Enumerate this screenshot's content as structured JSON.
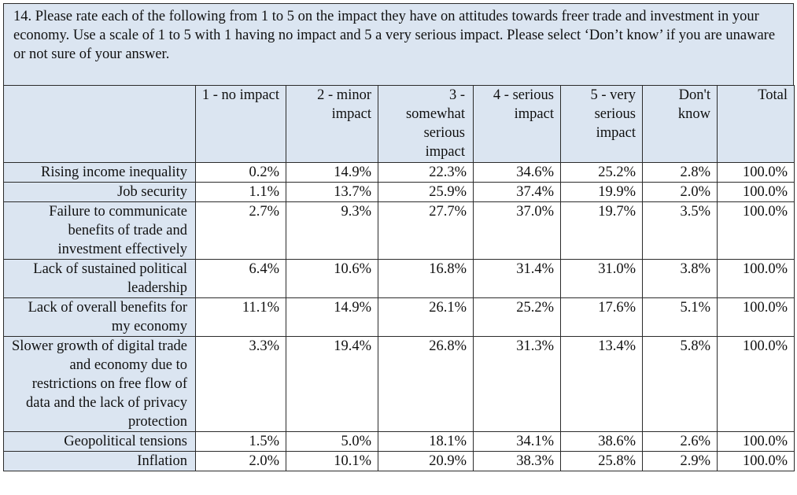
{
  "question": "14.  Please rate each of the following from 1 to 5 on the impact they have on attitudes towards freer trade and investment in your economy. Use a scale of 1 to 5 with 1 having no impact and 5 a very serious impact. Please select ‘Don’t know’ if you are unaware or not sure of your answer.",
  "columns": [
    "1 - no impact",
    "2 - minor impact",
    "3 - somewhat serious impact",
    "4 - serious impact",
    "5 - very serious impact",
    "Don't know",
    "Total"
  ],
  "rows": [
    {
      "label": "Rising income inequality",
      "values": [
        "0.2%",
        "14.9%",
        "22.3%",
        "34.6%",
        "25.2%",
        "2.8%",
        "100.0%"
      ]
    },
    {
      "label": "Job security",
      "values": [
        "1.1%",
        "13.7%",
        "25.9%",
        "37.4%",
        "19.9%",
        "2.0%",
        "100.0%"
      ]
    },
    {
      "label": "Failure to communicate benefits of trade and investment effectively",
      "values": [
        "2.7%",
        "9.3%",
        "27.7%",
        "37.0%",
        "19.7%",
        "3.5%",
        "100.0%"
      ]
    },
    {
      "label": "Lack of sustained political leadership",
      "values": [
        "6.4%",
        "10.6%",
        "16.8%",
        "31.4%",
        "31.0%",
        "3.8%",
        "100.0%"
      ]
    },
    {
      "label": "Lack of overall benefits for my economy",
      "values": [
        "11.1%",
        "14.9%",
        "26.1%",
        "25.2%",
        "17.6%",
        "5.1%",
        "100.0%"
      ]
    },
    {
      "label": "Slower growth of digital trade and economy due to restrictions on free flow of data and the lack of privacy protection",
      "values": [
        "3.3%",
        "19.4%",
        "26.8%",
        "31.3%",
        "13.4%",
        "5.8%",
        "100.0%"
      ]
    },
    {
      "label": "Geopolitical tensions",
      "values": [
        "1.5%",
        "5.0%",
        "18.1%",
        "34.1%",
        "38.6%",
        "2.6%",
        "100.0%"
      ]
    },
    {
      "label": "Inflation",
      "values": [
        "2.0%",
        "10.1%",
        "20.9%",
        "38.3%",
        "25.8%",
        "2.9%",
        "100.0%"
      ]
    }
  ]
}
